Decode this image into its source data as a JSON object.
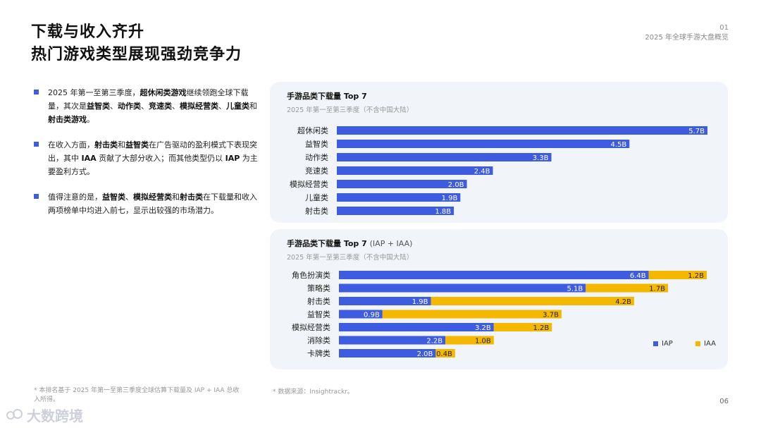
{
  "title": {
    "line1": "下载与收入齐升",
    "line2": "热门游戏类型展现强劲竞争力"
  },
  "page_meta": {
    "number": "01",
    "section": "2025 年全球手游大盘概览"
  },
  "bullets": [
    {
      "segments": [
        {
          "t": "2025 年第一至第三季度，",
          "b": false
        },
        {
          "t": "超休闲类游戏",
          "b": true
        },
        {
          "t": "继续领跑全球下载量，其次是",
          "b": false
        },
        {
          "t": "益智类",
          "b": true
        },
        {
          "t": "、",
          "b": false
        },
        {
          "t": "动作类",
          "b": true
        },
        {
          "t": "、",
          "b": false
        },
        {
          "t": "竞速类",
          "b": true
        },
        {
          "t": "、",
          "b": false
        },
        {
          "t": "模拟经营类",
          "b": true
        },
        {
          "t": "、",
          "b": false
        },
        {
          "t": "儿童类",
          "b": true
        },
        {
          "t": "和",
          "b": false
        },
        {
          "t": "射击类游戏",
          "b": true
        },
        {
          "t": "。",
          "b": false
        }
      ]
    },
    {
      "segments": [
        {
          "t": "在收入方面，",
          "b": false
        },
        {
          "t": "射击类",
          "b": true
        },
        {
          "t": "和",
          "b": false
        },
        {
          "t": "益智类",
          "b": true
        },
        {
          "t": "在广告驱动的盈利模式下表现突出，其中 ",
          "b": false
        },
        {
          "t": "IAA",
          "b": true
        },
        {
          "t": " 贡献了大部分收入；而其他类型仍以 ",
          "b": false
        },
        {
          "t": "IAP",
          "b": true
        },
        {
          "t": " 为主要盈利方式。",
          "b": false
        }
      ]
    },
    {
      "segments": [
        {
          "t": "值得注意的是，",
          "b": false
        },
        {
          "t": "益智类",
          "b": true
        },
        {
          "t": "、",
          "b": false
        },
        {
          "t": "模拟经营类",
          "b": true
        },
        {
          "t": "和",
          "b": false
        },
        {
          "t": "射击类",
          "b": true
        },
        {
          "t": "在下载量和收入两项榜单中均进入前七，显示出较强的市场潜力。",
          "b": false
        }
      ]
    }
  ],
  "colors": {
    "iap": "#3e5ce0",
    "iaa": "#f5b800",
    "panel": "#f1f4f8"
  },
  "chart_data": [
    {
      "type": "bar",
      "orientation": "horizontal",
      "title": "手游品类下载量 Top 7",
      "title_suffix": "",
      "subtitle": "2025 年第一至第三季度（不含中国大陆）",
      "categories": [
        "超休闲类",
        "益智类",
        "动作类",
        "竞速类",
        "模拟经营类",
        "儿童类",
        "射击类"
      ],
      "series": [
        {
          "name": "下载量",
          "values": [
            5.7,
            4.5,
            3.3,
            2.4,
            2.0,
            1.9,
            1.8
          ],
          "labels": [
            "5.7B",
            "4.5B",
            "3.3B",
            "2.4B",
            "2.0B",
            "1.9B",
            "1.8B"
          ]
        }
      ],
      "unit": "B",
      "xlim": [
        0,
        5.7
      ]
    },
    {
      "type": "bar",
      "orientation": "horizontal",
      "stacked": true,
      "title": "手游品类下载量 Top 7",
      "title_suffix": "(IAP + IAA)",
      "subtitle": "2025 年第一至第三季度（不含中国大陆）",
      "categories": [
        "角色扮演类",
        "策略类",
        "射击类",
        "益智类",
        "模拟经营类",
        "消除类",
        "卡牌类"
      ],
      "series": [
        {
          "name": "IAP",
          "values": [
            6.4,
            5.1,
            1.9,
            0.9,
            3.2,
            2.2,
            2.0
          ],
          "labels": [
            "6.4B",
            "5.1B",
            "1.9B",
            "0.9B",
            "3.2B",
            "2.2B",
            "2.0B"
          ]
        },
        {
          "name": "IAA",
          "values": [
            1.2,
            1.7,
            4.2,
            3.7,
            1.2,
            1.0,
            0.4
          ],
          "labels": [
            "1.2B",
            "1.7B",
            "4.2B",
            "3.7B",
            "1.2B",
            "1.0B",
            "0.4B"
          ]
        }
      ],
      "legend": [
        "IAP",
        "IAA"
      ],
      "unit": "B",
      "xlim": [
        0,
        7.6
      ]
    }
  ],
  "footnote": "* 本排名基于 2025 年第一至第三季度全球估算下载量及 IAP + IAA 总收入所得。",
  "source": "* 数据来源：Insightrackr。",
  "page_number": "06",
  "watermark": "大数跨境"
}
